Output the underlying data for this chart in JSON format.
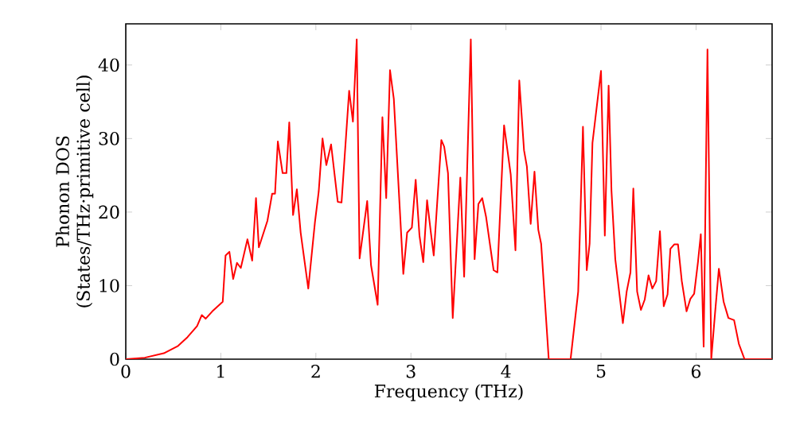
{
  "chart_data": {
    "type": "line",
    "xlabel": "Frequency (THz)",
    "ylabel": "Phonon DOS (States/THz·primitive cell)",
    "x": [
      0,
      0.2,
      0.4,
      0.55,
      0.65,
      0.75,
      0.8,
      0.84,
      0.91,
      1.02,
      1.05,
      1.09,
      1.13,
      1.17,
      1.21,
      1.28,
      1.33,
      1.37,
      1.4,
      1.49,
      1.54,
      1.57,
      1.6,
      1.65,
      1.69,
      1.72,
      1.76,
      1.8,
      1.84,
      1.92,
      1.99,
      2.03,
      2.07,
      2.11,
      2.16,
      2.23,
      2.27,
      2.35,
      2.39,
      2.43,
      2.46,
      2.54,
      2.58,
      2.65,
      2.7,
      2.74,
      2.78,
      2.82,
      2.92,
      2.96,
      3.01,
      3.05,
      3.09,
      3.13,
      3.17,
      3.21,
      3.24,
      3.32,
      3.35,
      3.39,
      3.44,
      3.52,
      3.56,
      3.63,
      3.67,
      3.71,
      3.75,
      3.79,
      3.87,
      3.91,
      3.98,
      4.05,
      4.1,
      4.14,
      4.19,
      4.22,
      4.26,
      4.3,
      4.34,
      4.37,
      4.45,
      4.68,
      4.76,
      4.81,
      4.85,
      4.88,
      4.91,
      5.0,
      5.04,
      5.08,
      5.11,
      5.15,
      5.23,
      5.27,
      5.31,
      5.34,
      5.38,
      5.42,
      5.46,
      5.5,
      5.54,
      5.58,
      5.62,
      5.66,
      5.7,
      5.73,
      5.77,
      5.81,
      5.85,
      5.9,
      5.94,
      5.98,
      6.02,
      6.05,
      6.08,
      6.12,
      6.16,
      6.2,
      6.24,
      6.29,
      6.34,
      6.4,
      6.45,
      6.51,
      6.8
    ],
    "series": [
      {
        "color": "#ff0000",
        "values": [
          0,
          0.2,
          0.8,
          1.8,
          3,
          4.5,
          6,
          5.5,
          6.5,
          7.8,
          14.1,
          14.6,
          10.9,
          13.1,
          12.4,
          16.3,
          13.4,
          21.9,
          15.2,
          18.8,
          22.5,
          22.5,
          29.6,
          25.3,
          25.3,
          32.2,
          19.6,
          23.1,
          17.2,
          9.6,
          18.6,
          22.8,
          30,
          26.4,
          29.2,
          21.4,
          21.3,
          36.5,
          32.3,
          43.5,
          13.7,
          21.5,
          12.8,
          7.4,
          32.9,
          21.9,
          39.3,
          35.4,
          11.6,
          17.2,
          17.9,
          24.4,
          16.8,
          13.2,
          21.6,
          17.2,
          14.1,
          29.8,
          28.9,
          25.3,
          5.6,
          24.7,
          11.2,
          43.5,
          13.6,
          21.1,
          21.9,
          19.4,
          12.1,
          11.8,
          31.8,
          25.1,
          14.8,
          37.9,
          28.4,
          26.2,
          18.4,
          25.5,
          17.6,
          15.7,
          0,
          0,
          9.2,
          31.6,
          12.1,
          15.7,
          29.4,
          39.2,
          16.8,
          37.2,
          22.9,
          13.6,
          4.9,
          9.2,
          11.8,
          23.2,
          9.2,
          6.7,
          8.1,
          11.4,
          9.6,
          10.6,
          17.4,
          7.2,
          8.8,
          15,
          15.6,
          15.6,
          10.6,
          6.5,
          8.2,
          8.9,
          13.2,
          17,
          1.7,
          42.1,
          0,
          6.3,
          12.3,
          7.8,
          5.6,
          5.3,
          2.1,
          0,
          0
        ]
      }
    ],
    "xlim": [
      0,
      6.8
    ],
    "ylim": [
      0,
      45.6
    ],
    "xticks": [
      0,
      1,
      2,
      3,
      4,
      5,
      6
    ],
    "yticks": [
      0,
      10,
      20,
      30,
      40
    ],
    "grid": false,
    "legend": false,
    "marker": "none",
    "line_style": "solid"
  }
}
